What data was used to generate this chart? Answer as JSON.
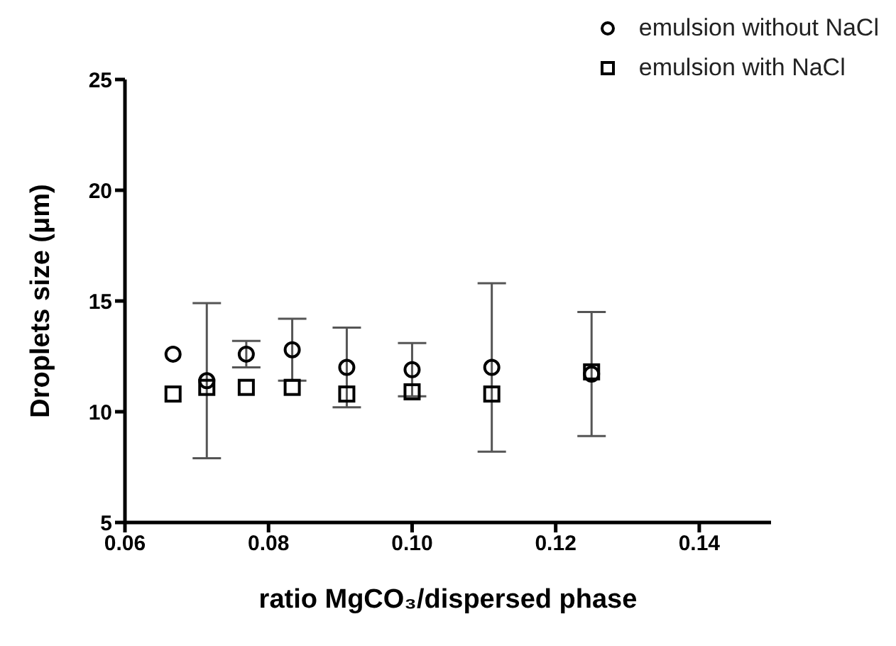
{
  "chart_data": {
    "type": "scatter",
    "xlabel": "ratio MgCO₃/dispersed phase",
    "ylabel": "Droplets size (μm)",
    "x": [
      0.0667,
      0.0714,
      0.0769,
      0.0833,
      0.0909,
      0.1,
      0.1111,
      0.125
    ],
    "series": [
      {
        "name": "emulsion without NaCl",
        "color": "#000000",
        "marker": "circle",
        "values": [
          12.6,
          11.4,
          12.6,
          12.8,
          12.0,
          11.9,
          12.0,
          11.7
        ],
        "errors": [
          null,
          3.5,
          0.6,
          1.4,
          1.8,
          1.2,
          3.8,
          2.8
        ]
      },
      {
        "name": "emulsion with NaCl",
        "color": "#000000",
        "marker": "square",
        "values": [
          10.8,
          11.1,
          11.1,
          11.1,
          10.8,
          10.9,
          10.8,
          11.8
        ]
      }
    ],
    "xlim": [
      0.06,
      0.15
    ],
    "xticks": [
      {
        "value": 0.06,
        "label": "0.06"
      },
      {
        "value": 0.08,
        "label": "0.08"
      },
      {
        "value": 0.1,
        "label": "0.10"
      },
      {
        "value": 0.12,
        "label": "0.12"
      },
      {
        "value": 0.14,
        "label": "0.14"
      }
    ],
    "ylim": [
      5,
      25
    ],
    "yticks": [
      5,
      10,
      15,
      20,
      25
    ],
    "grid": false,
    "legend": "top right"
  }
}
